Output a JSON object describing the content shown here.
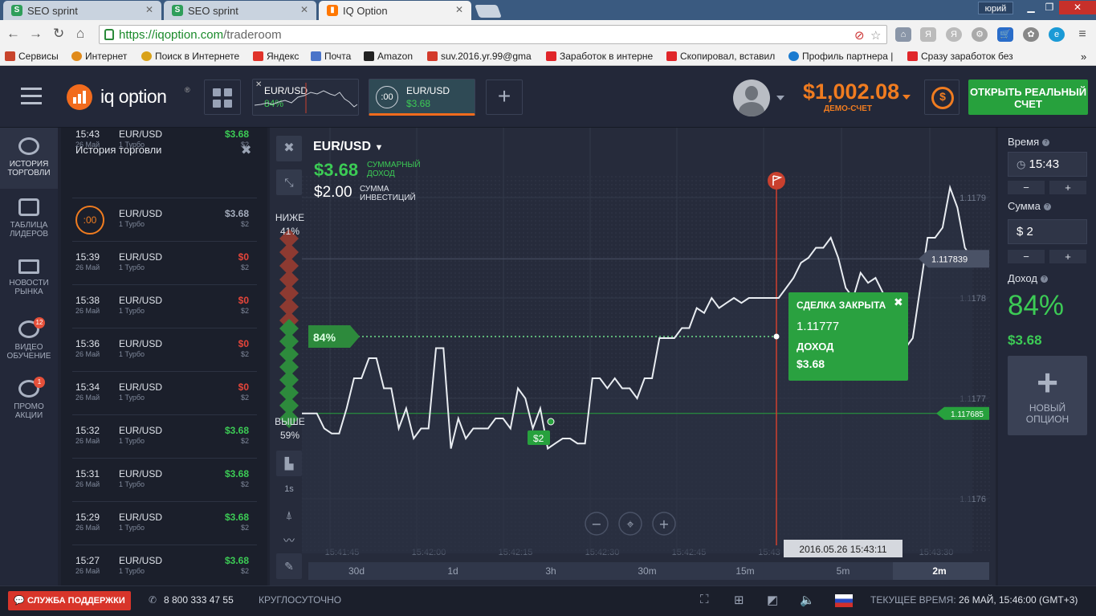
{
  "browser": {
    "tabs": [
      {
        "title": "SEO sprint",
        "icon": "seo-sprint-favicon"
      },
      {
        "title": "SEO sprint",
        "icon": "seo-sprint-favicon"
      },
      {
        "title": "IQ Option",
        "icon": "iq-option-favicon"
      }
    ],
    "user": "юрий",
    "url_host": "https://iqoption.com",
    "url_path": "/traderoom",
    "bookmarks": [
      {
        "label": "Сервисы",
        "color": "#c8442c"
      },
      {
        "label": "Интернет",
        "color": "#e08a1a"
      },
      {
        "label": "Поиск в Интернете",
        "color": "#d9a21a"
      },
      {
        "label": "Яндекс",
        "color": "#e0332a"
      },
      {
        "label": "Почта",
        "color": "#4a74c9"
      },
      {
        "label": "Amazon",
        "color": "#222222"
      },
      {
        "label": "suv.2016.yr.99@gma",
        "color": "#d33b2c"
      },
      {
        "label": "Заработок в интерне",
        "color": "#e0262a"
      },
      {
        "label": "Скопировал, вставил",
        "color": "#e0262a"
      },
      {
        "label": "Профиль партнера |",
        "color": "#1b7bd0"
      },
      {
        "label": "Сразу заработок без",
        "color": "#e0262a"
      }
    ]
  },
  "header": {
    "logo_text": "iq option",
    "asset_tabs": [
      {
        "pair": "EUR/USD",
        "value": "84%"
      },
      {
        "pair": "EUR/USD",
        "timer": ":00",
        "value": "$3.68"
      }
    ],
    "balance": "$1,002.08",
    "account_type": "ДЕМО-СЧЕТ",
    "real_account_button": "ОТКРЫТЬ РЕАЛЬНЫЙ СЧЕТ"
  },
  "sidebar": {
    "items": [
      {
        "label": "ИСТОРИЯ ТОРГОВЛИ",
        "icon": "history-icon"
      },
      {
        "label": "ТАБЛИЦА ЛИДЕРОВ",
        "icon": "leaderboard-icon"
      },
      {
        "label": "НОВОСТИ РЫНКА",
        "icon": "news-icon"
      },
      {
        "label": "ВИДЕО ОБУЧЕНИЕ",
        "icon": "video-icon",
        "badge": "12"
      },
      {
        "label": "ПРОМО АКЦИИ",
        "icon": "promo-icon",
        "badge": "1"
      }
    ]
  },
  "history": {
    "title": "История торговли",
    "rows": [
      {
        "time": "15:43",
        "date": "26 Май",
        "pair": "EUR/USD",
        "type": "1 Турбо",
        "profit": "$3.68",
        "invest": "$2",
        "status": "win"
      },
      {
        "time": ":00",
        "date": "",
        "pair": "EUR/USD",
        "type": "1 Турбо",
        "profit": "$3.68",
        "invest": "$2",
        "status": "open"
      },
      {
        "time": "15:39",
        "date": "26 Май",
        "pair": "EUR/USD",
        "type": "1 Турбо",
        "profit": "$0",
        "invest": "$2",
        "status": "loss"
      },
      {
        "time": "15:38",
        "date": "26 Май",
        "pair": "EUR/USD",
        "type": "1 Турбо",
        "profit": "$0",
        "invest": "$2",
        "status": "loss"
      },
      {
        "time": "15:36",
        "date": "26 Май",
        "pair": "EUR/USD",
        "type": "1 Турбо",
        "profit": "$0",
        "invest": "$2",
        "status": "loss"
      },
      {
        "time": "15:34",
        "date": "26 Май",
        "pair": "EUR/USD",
        "type": "1 Турбо",
        "profit": "$0",
        "invest": "$2",
        "status": "loss"
      },
      {
        "time": "15:32",
        "date": "26 Май",
        "pair": "EUR/USD",
        "type": "1 Турбо",
        "profit": "$3.68",
        "invest": "$2",
        "status": "win"
      },
      {
        "time": "15:31",
        "date": "26 Май",
        "pair": "EUR/USD",
        "type": "1 Турбо",
        "profit": "$3.68",
        "invest": "$2",
        "status": "win"
      },
      {
        "time": "15:29",
        "date": "26 Май",
        "pair": "EUR/USD",
        "type": "1 Турбо",
        "profit": "$3.68",
        "invest": "$2",
        "status": "win"
      },
      {
        "time": "15:27",
        "date": "26 Май",
        "pair": "EUR/USD",
        "type": "1 Турбо",
        "profit": "$3.68",
        "invest": "$2",
        "status": "win"
      }
    ]
  },
  "chart": {
    "asset": "EUR/USD",
    "total_profit": "$3.68",
    "total_profit_label": "СУММАРНЫЙ ДОХОД",
    "investment": "$2.00",
    "investment_label": "СУММА ИНВЕСТИЦИЙ",
    "lower_label": "НИЖЕ",
    "lower_pct": "41%",
    "higher_label": "ВЫШЕ",
    "higher_pct": "59%",
    "payout_marker": "84%",
    "bet_marker": "$2",
    "price_labels": [
      "1.1179",
      "1.1178",
      "1.1177",
      "1.1176"
    ],
    "current_price": "1.117839",
    "entry_price": "1.117685",
    "time_labels": [
      "15:41:45",
      "15:42:00",
      "15:42:15",
      "15:42:30",
      "15:42:45",
      "15:43",
      "15:43:30"
    ],
    "crosshair_time": "2016.05.26 15:43:11",
    "deal_closed": {
      "title": "СДЕЛКА ЗАКРЫТА",
      "price": "1.11777",
      "income_label": "ДОХОД",
      "income": "$3.68"
    },
    "timeframes": [
      "30d",
      "1d",
      "3h",
      "30m",
      "15m",
      "5m",
      "2m"
    ],
    "active_timeframe": "2m",
    "tool_1s": "1s",
    "series": [
      1.117685,
      1.117685,
      1.117685,
      1.11767,
      1.117665,
      1.117665,
      1.11769,
      1.11772,
      1.11772,
      1.11774,
      1.11774,
      1.11771,
      1.11771,
      1.11767,
      1.11769,
      1.11766,
      1.11767,
      1.11767,
      1.11775,
      1.11775,
      1.11765,
      1.11768,
      1.11766,
      1.11767,
      1.11767,
      1.11767,
      1.11768,
      1.11768,
      1.11767,
      1.11771,
      1.1177,
      1.11767,
      1.11769,
      1.11765,
      1.117655,
      1.11766,
      1.11766,
      1.117655,
      1.117655,
      1.11772,
      1.11772,
      1.11771,
      1.11772,
      1.11771,
      1.11771,
      1.1177,
      1.11772,
      1.11772,
      1.11776,
      1.11776,
      1.11776,
      1.11777,
      1.11777,
      1.11779,
      1.117785,
      1.1178,
      1.11779,
      1.117795,
      1.1178,
      1.117795,
      1.1178,
      1.1178,
      1.1178,
      1.1178,
      1.1178,
      1.11781,
      1.11782,
      1.117835,
      1.11784,
      1.11785,
      1.11785,
      1.11786,
      1.11784,
      1.11781,
      1.1178,
      1.117825,
      1.117815,
      1.11782,
      1.117805,
      1.11779,
      1.11777,
      1.11775,
      1.11776,
      1.11781,
      1.11786,
      1.11786,
      1.11787,
      1.11791,
      1.11789,
      1.11785,
      1.117839
    ]
  },
  "order": {
    "time_label": "Время",
    "time_value": "15:43",
    "amount_label": "Сумма",
    "amount_value": "$ 2",
    "income_label": "Доход",
    "income_pct": "84%",
    "income_value": "$3.68",
    "new_option": "НОВЫЙ ОПЦИОН",
    "minus": "−",
    "plus": "+"
  },
  "footer": {
    "support": "СЛУЖБА ПОДДЕРЖКИ",
    "phone": "8 800 333 47 55",
    "hours": "КРУГЛОСУТОЧНО",
    "clock_label": "ТЕКУЩЕЕ ВРЕМЯ:",
    "clock_value": "26 МАЙ, 15:46:00 (GMT+3)"
  },
  "colors": {
    "accent": "#f07c20",
    "up": "#27a13d",
    "down": "#c9402e",
    "bg": "#262b3b"
  }
}
